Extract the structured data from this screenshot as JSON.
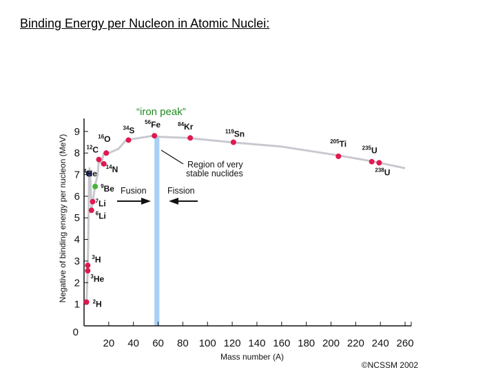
{
  "slide": {
    "title": "Binding Energy per Nucleon in Atomic Nuclei:"
  },
  "chart_data": {
    "type": "line",
    "title": "",
    "xlabel": "Mass number (A)",
    "ylabel": "Negative of binding energy per nucleon (MeV)",
    "xlim": [
      0,
      265
    ],
    "ylim": [
      0,
      9.6
    ],
    "x_ticks": [
      20,
      40,
      60,
      80,
      100,
      120,
      140,
      160,
      180,
      200,
      220,
      240,
      260
    ],
    "y_ticks": [
      1,
      2,
      3,
      4,
      5,
      6,
      7,
      8,
      9
    ],
    "origin_label": "0",
    "grid": false,
    "curve": {
      "x": [
        2,
        3,
        3.6,
        4,
        4.4,
        5,
        6,
        7,
        9,
        11,
        12,
        14,
        16,
        20,
        28,
        34,
        45,
        56,
        62,
        84,
        119,
        160,
        205,
        235,
        260
      ],
      "y": [
        1.1,
        2.6,
        4.8,
        6.6,
        7.3,
        6.9,
        5.4,
        5.7,
        6.5,
        7.0,
        7.7,
        7.5,
        8.0,
        8.0,
        8.2,
        8.6,
        8.7,
        8.8,
        8.75,
        8.7,
        8.5,
        8.3,
        7.9,
        7.6,
        7.3
      ]
    },
    "points": [
      {
        "mass": "2",
        "symbol": "H",
        "x": 2,
        "y": 1.1,
        "color": "#e0194f"
      },
      {
        "mass": "3",
        "symbol": "He",
        "x": 3,
        "y": 2.55,
        "color": "#e0194f"
      },
      {
        "mass": "3",
        "symbol": "H",
        "x": 3,
        "y": 2.8,
        "color": "#e0194f"
      },
      {
        "mass": "4",
        "symbol": "He",
        "x": 4,
        "y": 7.05,
        "color": "#3a3fa0"
      },
      {
        "mass": "6",
        "symbol": "Li",
        "x": 6,
        "y": 5.35,
        "color": "#e0194f"
      },
      {
        "mass": "7",
        "symbol": "Li",
        "x": 7,
        "y": 5.75,
        "color": "#e0194f"
      },
      {
        "mass": "9",
        "symbol": "Be",
        "x": 9,
        "y": 6.45,
        "color": "#44b534"
      },
      {
        "mass": "12",
        "symbol": "C",
        "x": 12,
        "y": 7.7,
        "color": "#e0194f"
      },
      {
        "mass": "14",
        "symbol": "N",
        "x": 16,
        "y": 7.5,
        "color": "#e0194f"
      },
      {
        "mass": "16",
        "symbol": "O",
        "x": 18,
        "y": 8.0,
        "color": "#e0194f"
      },
      {
        "mass": "34",
        "symbol": "S",
        "x": 36,
        "y": 8.6,
        "color": "#e0194f"
      },
      {
        "mass": "56",
        "symbol": "Fe",
        "x": 57,
        "y": 8.8,
        "color": "#e0194f"
      },
      {
        "mass": "84",
        "symbol": "Kr",
        "x": 86,
        "y": 8.7,
        "color": "#e0194f"
      },
      {
        "mass": "119",
        "symbol": "Sn",
        "x": 121,
        "y": 8.5,
        "color": "#e0194f"
      },
      {
        "mass": "205",
        "symbol": "Ti",
        "x": 206,
        "y": 7.85,
        "color": "#e0194f"
      },
      {
        "mass": "235",
        "symbol": "U",
        "x": 233,
        "y": 7.6,
        "color": "#e0194f"
      },
      {
        "mass": "238",
        "symbol": "U",
        "x": 239,
        "y": 7.55,
        "color": "#e0194f"
      }
    ],
    "band": {
      "x_from": 57,
      "x_to": 61,
      "color": "#a9cff5"
    },
    "annotations": {
      "iron_peak": "“iron peak”",
      "region_line1": "Region of very",
      "region_line2": "stable nuclides",
      "fusion": "Fusion",
      "fission": "Fission"
    },
    "copyright": "©NCSSM 2002",
    "colors": {
      "curve": "#c8c8d0",
      "axis": "#111111",
      "stable_point": "#e0194f",
      "iron_peak_text": "#1f8a1f"
    }
  }
}
